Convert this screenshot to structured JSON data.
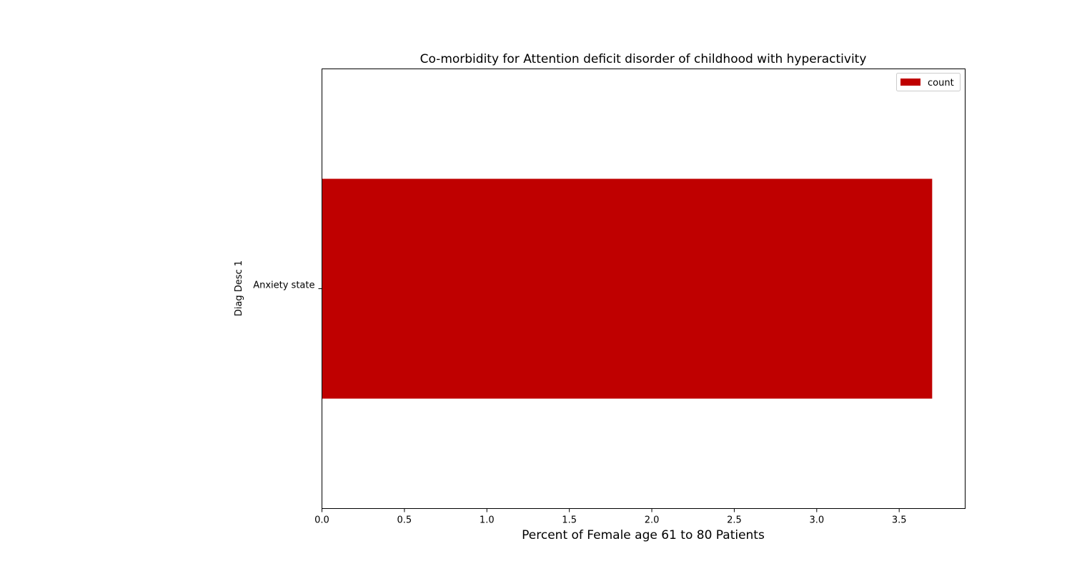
{
  "chart_data": {
    "type": "bar",
    "orientation": "horizontal",
    "title": "Co-morbidity for Attention deficit disorder of childhood with hyperactivity",
    "xlabel": "Percent of Female age 61 to 80 Patients",
    "ylabel": "Diag Desc 1",
    "categories": [
      "Anxiety state"
    ],
    "series": [
      {
        "name": "count",
        "values": [
          3.7
        ],
        "color": "#bf0000"
      }
    ],
    "xlim": [
      0,
      3.9
    ],
    "xticks": [
      0.0,
      0.5,
      1.0,
      1.5,
      2.0,
      2.5,
      3.0,
      3.5
    ],
    "xtick_labels": [
      "0.0",
      "0.5",
      "1.0",
      "1.5",
      "2.0",
      "2.5",
      "3.0",
      "3.5"
    ],
    "grid": false,
    "legend_position": "top-right"
  }
}
